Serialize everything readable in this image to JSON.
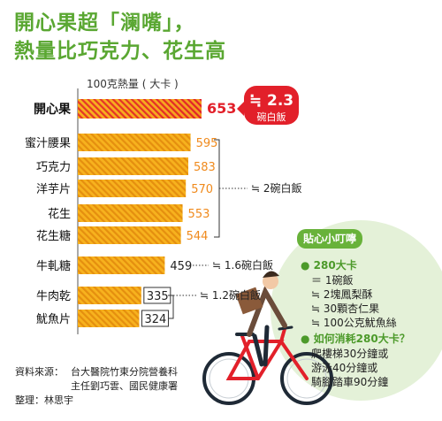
{
  "title_line1": "開心果超「澜嘴」，",
  "title_line2": "熱量比巧克力、花生高",
  "chart_data": {
    "type": "bar",
    "ylabel": "100克熱量 ( 大卡 )",
    "categories": [
      "開心果",
      "蜜汁腰果",
      "巧克力",
      "洋芋片",
      "花生",
      "花生糖",
      "牛軋糖",
      "牛肉乾",
      "魷魚片"
    ],
    "values": [
      653,
      595,
      583,
      570,
      553,
      544,
      459,
      335,
      324
    ],
    "highlight": {
      "badge_value": "≒ 2.3",
      "badge_unit": "碗白飯"
    },
    "groups": [
      {
        "label": "≒ 2碗白飯"
      },
      {
        "label": "≒ 1.6碗白飯"
      },
      {
        "label": "≒ 1.2碗白飯"
      }
    ]
  },
  "colors": {
    "brand_green": "#5aa732",
    "orange": "#f5a91c",
    "red": "#e2202a",
    "tips_bg": "#e4f1d8"
  },
  "source": {
    "label": "資料來源：",
    "line1": "台大醫院竹東分院營養科",
    "line2": "主任劉巧雲、國民健康署",
    "editor": "整理：林思宇"
  },
  "tips": {
    "title": "貼心小叮嚀",
    "h1": "280大卡",
    "items1": [
      "＝ 1碗飯",
      "≒ 2塊鳳梨酥",
      "≒ 30顆杏仁果",
      "≒ 100公克魷魚絲"
    ],
    "h2": "如何消耗280大卡？",
    "items2": [
      "爬樓梯30分鐘或",
      "游泳40分鐘或",
      "騎腳踏車90分鐘"
    ]
  }
}
